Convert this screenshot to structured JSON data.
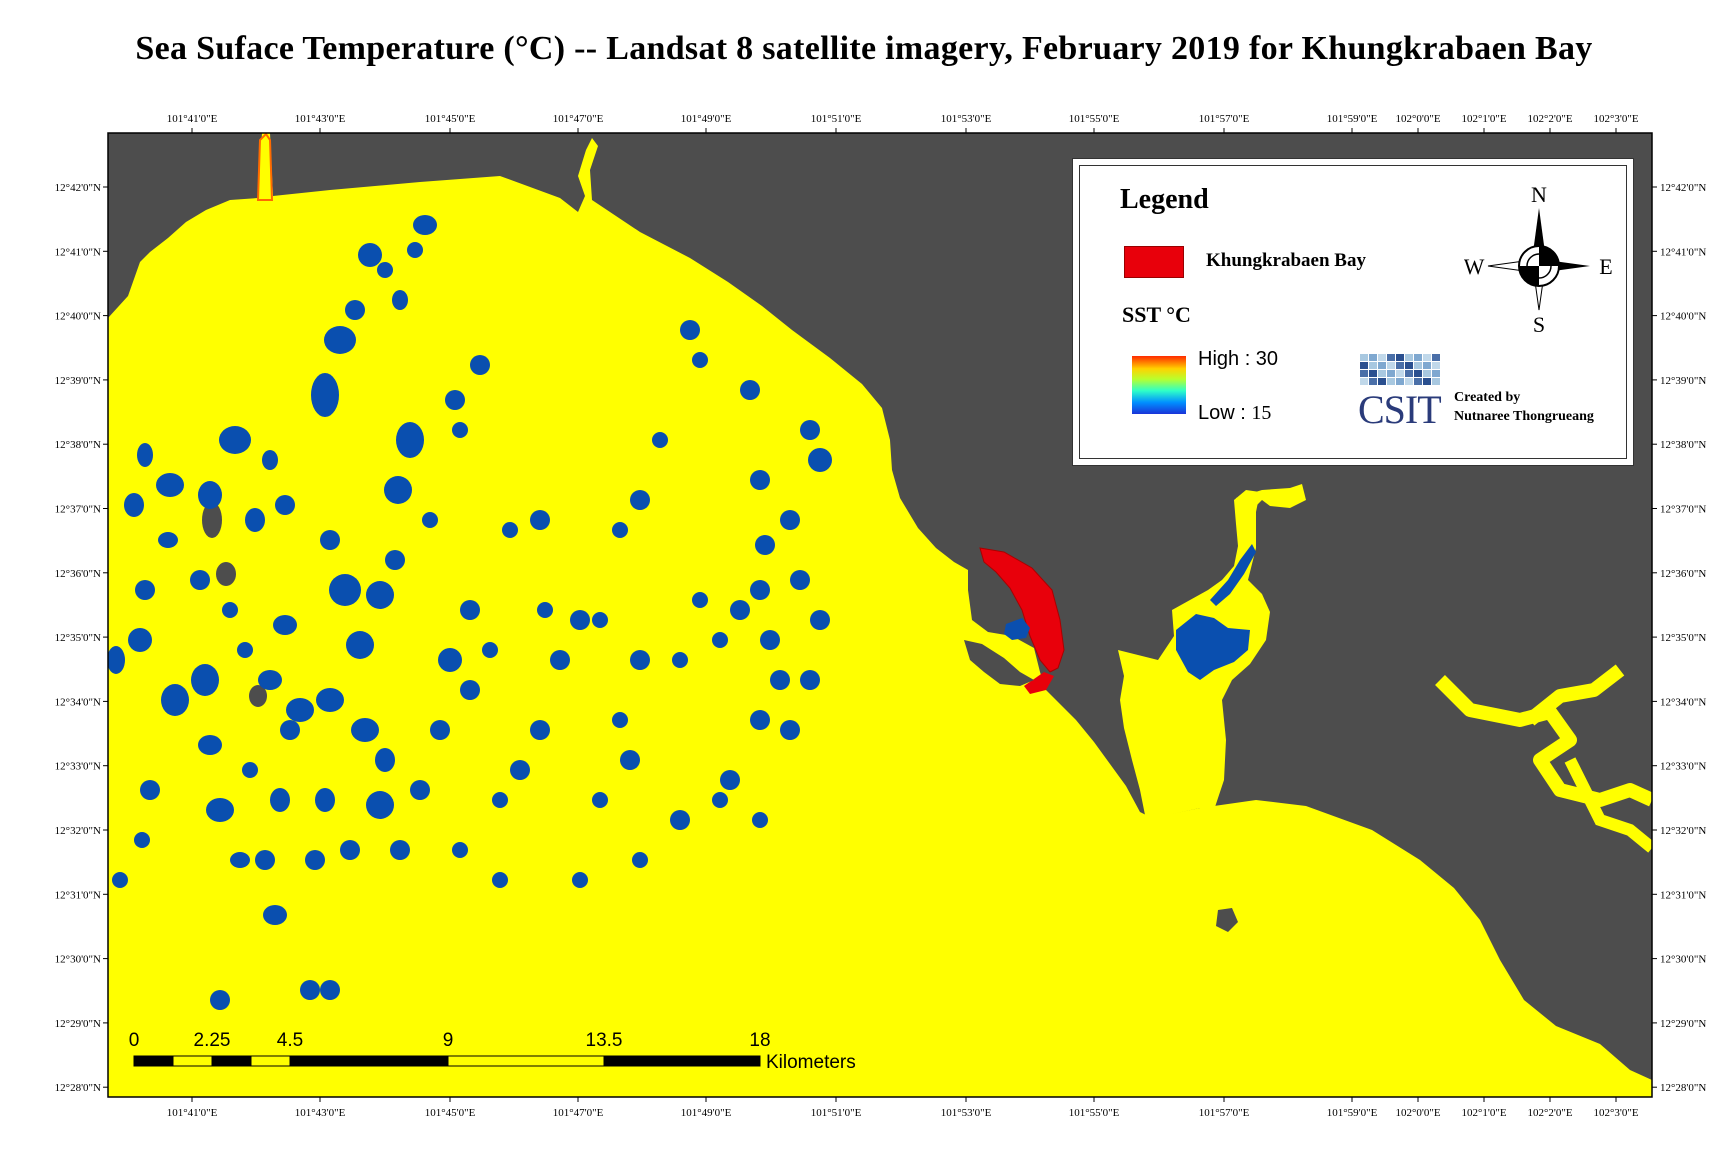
{
  "title": "Sea Suface Temperature (°C) -- Landsat 8 satellite imagery, February 2019 for Khungkrabaen Bay",
  "colors": {
    "land": "#4d4d4d",
    "sea_warm": "#ffff00",
    "sea_cool": "#0a4faf",
    "bay": "#e8000b",
    "coast_warm": "#ff6a00"
  },
  "lon_ticks": [
    "101°41'0\"E",
    "101°43'0\"E",
    "101°45'0\"E",
    "101°47'0\"E",
    "101°49'0\"E",
    "101°51'0\"E",
    "101°53'0\"E",
    "101°55'0\"E",
    "101°57'0\"E",
    "101°59'0\"E",
    "102°0'0\"E",
    "102°1'0\"E",
    "102°2'0\"E",
    "102°3'0\"E"
  ],
  "lat_ticks": [
    "12°42'0\"N",
    "12°41'0\"N",
    "12°40'0\"N",
    "12°39'0\"N",
    "12°38'0\"N",
    "12°37'0\"N",
    "12°36'0\"N",
    "12°35'0\"N",
    "12°34'0\"N",
    "12°33'0\"N",
    "12°32'0\"N",
    "12°31'0\"N",
    "12°30'0\"N",
    "12°29'0\"N",
    "12°28'0\"N"
  ],
  "legend": {
    "title": "Legend",
    "bay_label": "Khungkrabaen Bay",
    "sst_label": "SST  °C",
    "high_label": "High : 30",
    "low_label": "Low : ",
    "low_value": "15",
    "logo": "CSIT",
    "credit_line1": "Created by",
    "credit_line2": "Nutnaree Thongrueang"
  },
  "compass": {
    "n": "N",
    "s": "S",
    "e": "E",
    "w": "W"
  },
  "scale_bar": {
    "labels": [
      "0",
      "2.25",
      "4.5",
      "9",
      "13.5",
      "18"
    ],
    "unit": "Kilometers"
  }
}
